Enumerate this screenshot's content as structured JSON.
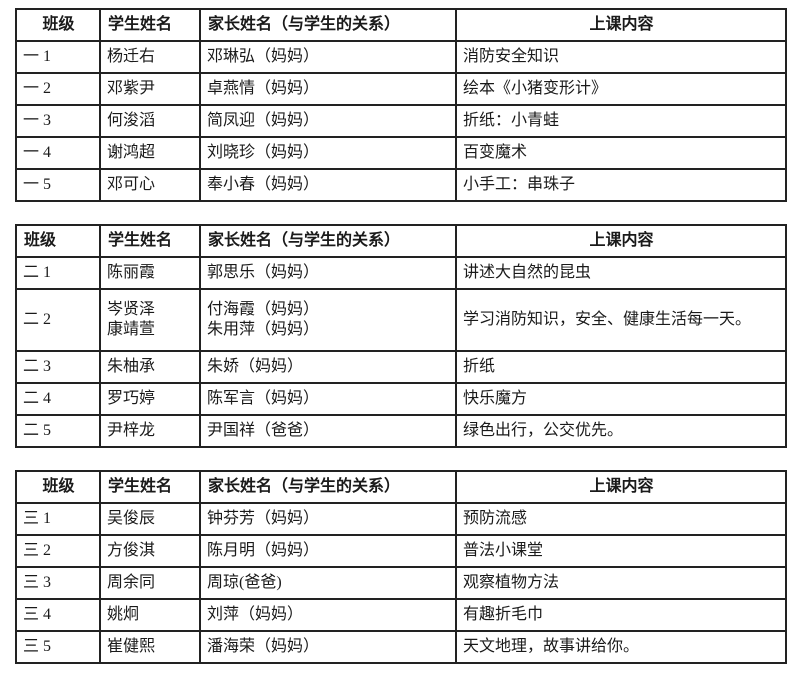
{
  "page": {
    "background_color": "#ffffff",
    "text_color": "#1a1a1a",
    "border_color": "#222222"
  },
  "tables": [
    {
      "grade_label": "grade-1",
      "headers": [
        "班级",
        "学生姓名",
        "家长姓名（与学生的关系）",
        "上课内容"
      ],
      "rows": [
        {
          "cls": "一 1",
          "student": "杨迁右",
          "parent": "邓琳弘（妈妈）",
          "content": "消防安全知识"
        },
        {
          "cls": "一 2",
          "student": "邓紫尹",
          "parent": "卓燕情（妈妈）",
          "content": "绘本《小猪变形计》"
        },
        {
          "cls": "一 3",
          "student": "何浚滔",
          "parent": "简凤迎（妈妈）",
          "content": "折纸：小青蛙"
        },
        {
          "cls": "一 4",
          "student": "谢鸿超",
          "parent": "刘晓珍（妈妈）",
          "content": "百变魔术"
        },
        {
          "cls": "一 5",
          "student": "邓可心",
          "parent": "奉小春（妈妈）",
          "content": "小手工：串珠子"
        }
      ]
    },
    {
      "grade_label": "grade-2",
      "headers": [
        "班级",
        "学生姓名",
        "家长姓名（与学生的关系）",
        "上课内容"
      ],
      "rows": [
        {
          "cls": "二 1",
          "student": "陈丽霞",
          "parent": "郭思乐（妈妈）",
          "content": "讲述大自然的昆虫"
        },
        {
          "cls": "二 2",
          "student": "岑贤泽\n康靖萱",
          "parent": "付海霞（妈妈）\n朱用萍（妈妈）",
          "content": "学习消防知识，安全、健康生活每一天。"
        },
        {
          "cls": "二 3",
          "student": "朱柚承",
          "parent": "朱娇（妈妈）",
          "content": "折纸"
        },
        {
          "cls": "二 4",
          "student": "罗巧婷",
          "parent": "陈军言（妈妈）",
          "content": "快乐魔方"
        },
        {
          "cls": "二 5",
          "student": "尹梓龙",
          "parent": "尹国祥（爸爸）",
          "content": "绿色出行，公交优先。"
        }
      ]
    },
    {
      "grade_label": "grade-3",
      "headers": [
        "班级",
        "学生姓名",
        "家长姓名（与学生的关系）",
        "上课内容"
      ],
      "rows": [
        {
          "cls": "三 1",
          "student": "吴俊辰",
          "parent": "钟芬芳（妈妈）",
          "content": "预防流感"
        },
        {
          "cls": "三 2",
          "student": "方俊淇",
          "parent": "陈月明（妈妈）",
          "content": "普法小课堂"
        },
        {
          "cls": "三 3",
          "student": "周余同",
          "parent": "周琼(爸爸)",
          "content": "观察植物方法"
        },
        {
          "cls": "三 4",
          "student": "姚炯",
          "parent": "刘萍（妈妈）",
          "content": "有趣折毛巾"
        },
        {
          "cls": "三 5",
          "student": "崔健熙",
          "parent": "潘海荣（妈妈）",
          "content": "天文地理，故事讲给你。"
        }
      ]
    }
  ]
}
